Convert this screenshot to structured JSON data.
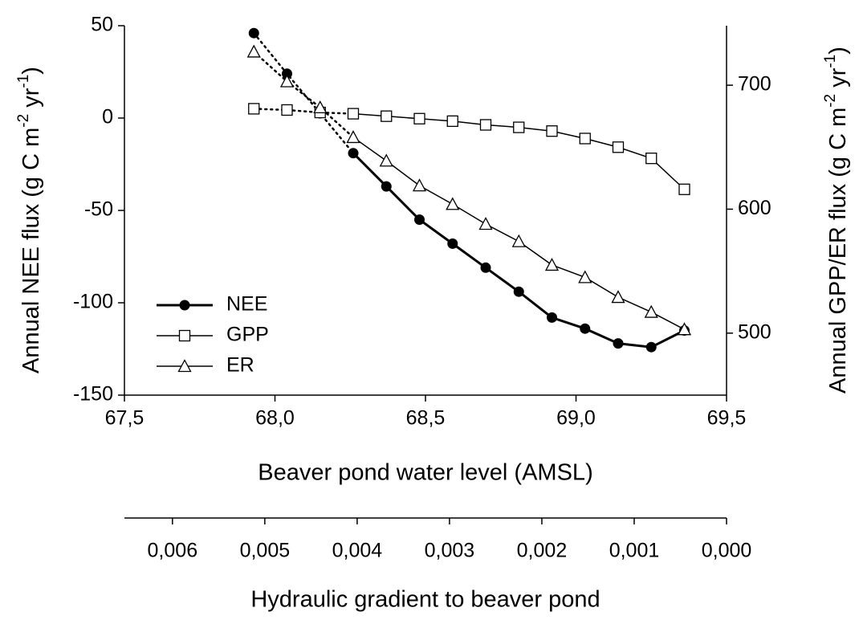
{
  "chart_data": {
    "type": "line",
    "xlabel": "Beaver pond water level (AMSL)",
    "ylabel": [
      "Annual NEE flux (g C m",
      "-2",
      " yr",
      "-1",
      ")"
    ],
    "y2label": [
      "Annual GPP/ER flux (g C m",
      "-2",
      " yr",
      "-1",
      ")"
    ],
    "x2label": "Hydraulic gradient to beaver pond",
    "x": [
      67.93,
      68.04,
      68.15,
      68.26,
      68.37,
      68.48,
      68.59,
      68.7,
      68.81,
      68.92,
      69.03,
      69.14,
      69.25,
      69.36
    ],
    "xlim": [
      67.5,
      69.5
    ],
    "xticks": [
      {
        "value": 67.5,
        "label": "67,5"
      },
      {
        "value": 68.0,
        "label": "68,0"
      },
      {
        "value": 68.5,
        "label": "68,5"
      },
      {
        "value": 69.0,
        "label": "69,0"
      },
      {
        "value": 69.5,
        "label": "69,5"
      }
    ],
    "ylim": [
      -150,
      50
    ],
    "yticks": [
      -150,
      -100,
      -50,
      0,
      50
    ],
    "y2lim": [
      450,
      748
    ],
    "y2ticks": [
      500,
      600,
      700
    ],
    "x2lim": [
      0.00652,
      0
    ],
    "x2ticks": [
      {
        "value": 0.006,
        "label": "0,006"
      },
      {
        "value": 0.005,
        "label": "0,005"
      },
      {
        "value": 0.004,
        "label": "0,004"
      },
      {
        "value": 0.003,
        "label": "0,003"
      },
      {
        "value": 0.002,
        "label": "0,002"
      },
      {
        "value": 0.001,
        "label": "0,001"
      },
      {
        "value": 0,
        "label": "0,000"
      }
    ],
    "legend": "lower left",
    "series": [
      {
        "name": "NEE",
        "color": "#000000",
        "marker": "circle",
        "line_width": 3,
        "dotted_segments": 3,
        "values": [
          46,
          24,
          2.6,
          -19,
          -37,
          -55,
          -68,
          -81,
          -94,
          -108,
          -114,
          -122,
          -124,
          -115
        ]
      },
      {
        "name": "GPP",
        "color": "#000000",
        "marker": "square",
        "line_width": 1.5,
        "dotted_segments": 3,
        "axis": "y2",
        "values": [
          681,
          680,
          678,
          677,
          675,
          673,
          671,
          668,
          666,
          663,
          657,
          650,
          641,
          616
        ]
      },
      {
        "name": "ER",
        "color": "#000000",
        "marker": "triangle",
        "line_width": 1.5,
        "dotted_segments": 3,
        "axis": "y2",
        "values": [
          727,
          703,
          682,
          658,
          639,
          619,
          604,
          588,
          574,
          555,
          545,
          529,
          517,
          503
        ]
      }
    ]
  }
}
